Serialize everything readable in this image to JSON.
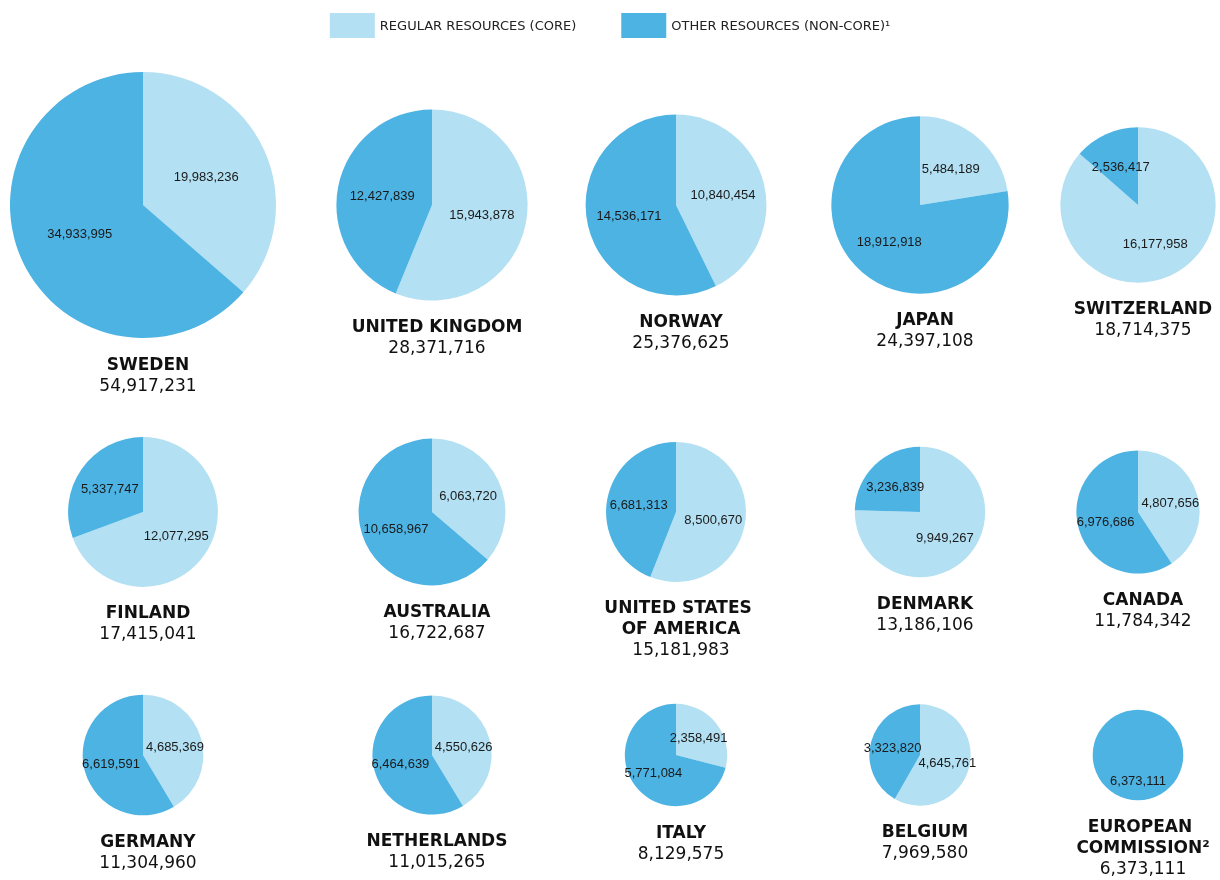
{
  "chart_data": [
    {
      "type": "pie",
      "title": "SWEDEN",
      "subtitle": "54,917,231",
      "categories": [
        "REGULAR RESOURCES (CORE)",
        "OTHER RESOURCES (NON-CORE)¹"
      ],
      "values": [
        19983236,
        34933995
      ],
      "value_labels": [
        "19,983,236",
        "34,933,995"
      ],
      "colors": [
        "#b3e0f2",
        "#4db3e3"
      ],
      "legend": "top"
    },
    {
      "type": "pie",
      "title": "UNITED KINGDOM",
      "subtitle": "28,371,716",
      "categories": [
        null,
        null
      ],
      "values": [
        15943878,
        12427839
      ],
      "value_labels": [
        "15,943,878",
        "12,427,839"
      ],
      "colors": [
        "#b3e0f2",
        "#4db3e3"
      ]
    },
    {
      "type": "pie",
      "title": "NORWAY",
      "subtitle": "25,376,625",
      "categories": [
        null,
        null
      ],
      "values": [
        10840454,
        14536171
      ],
      "value_labels": [
        "10,840,454",
        "14,536,171"
      ],
      "colors": [
        "#b3e0f2",
        "#4db3e3"
      ]
    },
    {
      "type": "pie",
      "title": "JAPAN",
      "subtitle": "24,397,108",
      "categories": [
        null,
        null
      ],
      "values": [
        5484189,
        18912918
      ],
      "value_labels": [
        "5,484,189",
        "18,912,918"
      ],
      "colors": [
        "#b3e0f2",
        "#4db3e3"
      ]
    },
    {
      "type": "pie",
      "title": "SWITZERLAND",
      "subtitle": "18,714,375",
      "categories": [
        null,
        null
      ],
      "values": [
        16177958,
        2536417
      ],
      "value_labels": [
        "16,177,958",
        "2,536,417"
      ],
      "colors": [
        "#b3e0f2",
        "#4db3e3"
      ]
    },
    {
      "type": "pie",
      "title": "FINLAND",
      "subtitle": "17,415,041",
      "categories": [
        null,
        null
      ],
      "values": [
        12077295,
        5337747
      ],
      "value_labels": [
        "12,077,295",
        "5,337,747"
      ],
      "colors": [
        "#b3e0f2",
        "#4db3e3"
      ]
    },
    {
      "type": "pie",
      "title": "AUSTRALIA",
      "subtitle": "16,722,687",
      "categories": [
        null,
        null
      ],
      "values": [
        6063720,
        10658967
      ],
      "value_labels": [
        "6,063,720",
        "10,658,967"
      ],
      "colors": [
        "#b3e0f2",
        "#4db3e3"
      ]
    },
    {
      "type": "pie",
      "title": "UNITED STATES OF AMERICA",
      "subtitle": "15,181,983",
      "categories": [
        null,
        null
      ],
      "values": [
        8500670,
        6681313
      ],
      "value_labels": [
        "8,500,670",
        "6,681,313"
      ],
      "colors": [
        "#b3e0f2",
        "#4db3e3"
      ]
    },
    {
      "type": "pie",
      "title": "DENMARK",
      "subtitle": "13,186,106",
      "categories": [
        null,
        null
      ],
      "values": [
        9949267,
        3236839
      ],
      "value_labels": [
        "9,949,267",
        "3,236,839"
      ],
      "colors": [
        "#b3e0f2",
        "#4db3e3"
      ]
    },
    {
      "type": "pie",
      "title": "CANADA",
      "subtitle": "11,784,342",
      "categories": [
        null,
        null
      ],
      "values": [
        4807656,
        6976686
      ],
      "value_labels": [
        "4,807,656",
        "6,976,686"
      ],
      "colors": [
        "#b3e0f2",
        "#4db3e3"
      ]
    },
    {
      "type": "pie",
      "title": "GERMANY",
      "subtitle": "11,304,960",
      "categories": [
        null,
        null
      ],
      "values": [
        4685369,
        6619591
      ],
      "value_labels": [
        "4,685,369",
        "6,619,591"
      ],
      "colors": [
        "#b3e0f2",
        "#4db3e3"
      ]
    },
    {
      "type": "pie",
      "title": "NETHERLANDS",
      "subtitle": "11,015,265",
      "categories": [
        null,
        null
      ],
      "values": [
        4550626,
        6464639
      ],
      "value_labels": [
        "4,550,626",
        "6,464,639"
      ],
      "colors": [
        "#b3e0f2",
        "#4db3e3"
      ]
    },
    {
      "type": "pie",
      "title": "ITALY",
      "subtitle": "8,129,575",
      "categories": [
        null,
        null
      ],
      "values": [
        2358491,
        5771084
      ],
      "value_labels": [
        "2,358,491",
        "5,771,084"
      ],
      "colors": [
        "#b3e0f2",
        "#4db3e3"
      ]
    },
    {
      "type": "pie",
      "title": "BELGIUM",
      "subtitle": "7,969,580",
      "categories": [
        null,
        null
      ],
      "values": [
        4645761,
        3323820
      ],
      "value_labels": [
        "4,645,761",
        "3,323,820"
      ],
      "colors": [
        "#b3e0f2",
        "#4db3e3"
      ]
    },
    {
      "type": "pie",
      "title": "EUROPEAN COMMISSION²",
      "subtitle": "6,373,111",
      "categories": [
        null,
        null
      ],
      "values": [
        null,
        6373111
      ],
      "value_labels": [
        null,
        "6,373,111"
      ],
      "colors": [
        "#b3e0f2",
        "#4db3e3"
      ]
    }
  ]
}
